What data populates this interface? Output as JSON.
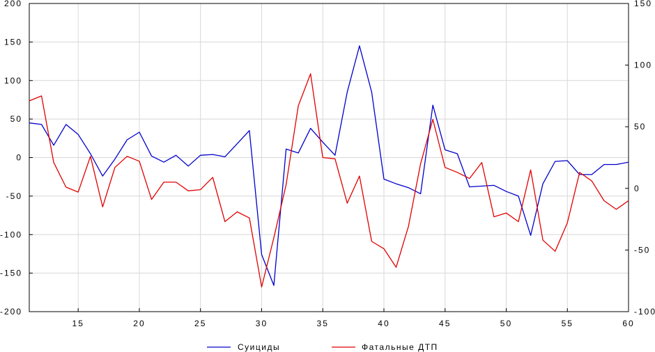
{
  "chart_data": {
    "type": "line",
    "title": "",
    "xlabel": "",
    "ylabel": "",
    "xlim": [
      11,
      60
    ],
    "ylim_left": [
      -200,
      200
    ],
    "ylim_right": [
      -100,
      150
    ],
    "x_ticks": [
      15,
      20,
      25,
      30,
      35,
      40,
      45,
      50,
      55,
      60
    ],
    "y_ticks_left": [
      -200,
      -150,
      -100,
      -50,
      0,
      50,
      100,
      150,
      200
    ],
    "y_ticks_right": [
      -100,
      -50,
      0,
      50,
      100,
      150
    ],
    "grid": true,
    "legend": "bottom",
    "x": [
      11,
      12,
      13,
      14,
      15,
      16,
      17,
      18,
      19,
      20,
      21,
      22,
      23,
      24,
      25,
      26,
      27,
      28,
      29,
      30,
      31,
      32,
      33,
      34,
      35,
      36,
      37,
      38,
      39,
      40,
      41,
      42,
      43,
      44,
      45,
      46,
      47,
      48,
      49,
      50,
      51,
      52,
      53,
      54,
      55,
      56,
      57,
      58,
      59,
      60
    ],
    "series": [
      {
        "name": "Суициды",
        "axis": "left",
        "color": "#0000cc",
        "values": [
          45,
          43,
          16,
          43,
          30,
          5,
          -24,
          -2,
          23,
          33,
          2,
          -6,
          3,
          -11,
          3,
          4,
          1,
          18,
          35,
          -126,
          -166,
          11,
          6,
          38,
          20,
          3,
          85,
          145,
          85,
          -28,
          -34,
          -39,
          -47,
          68,
          10,
          5,
          -38,
          -37,
          -36,
          -44,
          -50,
          -101,
          -34,
          -5,
          -4,
          -22,
          -22,
          -9,
          -9,
          -6
        ]
      },
      {
        "name": "Фатальные ДТП",
        "axis": "right",
        "color": "#e00000",
        "values": [
          71,
          75,
          21,
          1,
          -3,
          26,
          -15,
          17,
          26,
          22,
          -9,
          5,
          5,
          -2,
          -1,
          9,
          -27,
          -19,
          -24,
          -80,
          -40,
          3,
          67,
          93,
          25,
          24,
          -12,
          10,
          -43,
          -49,
          -64,
          -31,
          20,
          56,
          17,
          13,
          8,
          21,
          -23,
          -20,
          -27,
          15,
          -42,
          -51,
          -28,
          13,
          6,
          -10,
          -17,
          -10
        ]
      }
    ]
  }
}
